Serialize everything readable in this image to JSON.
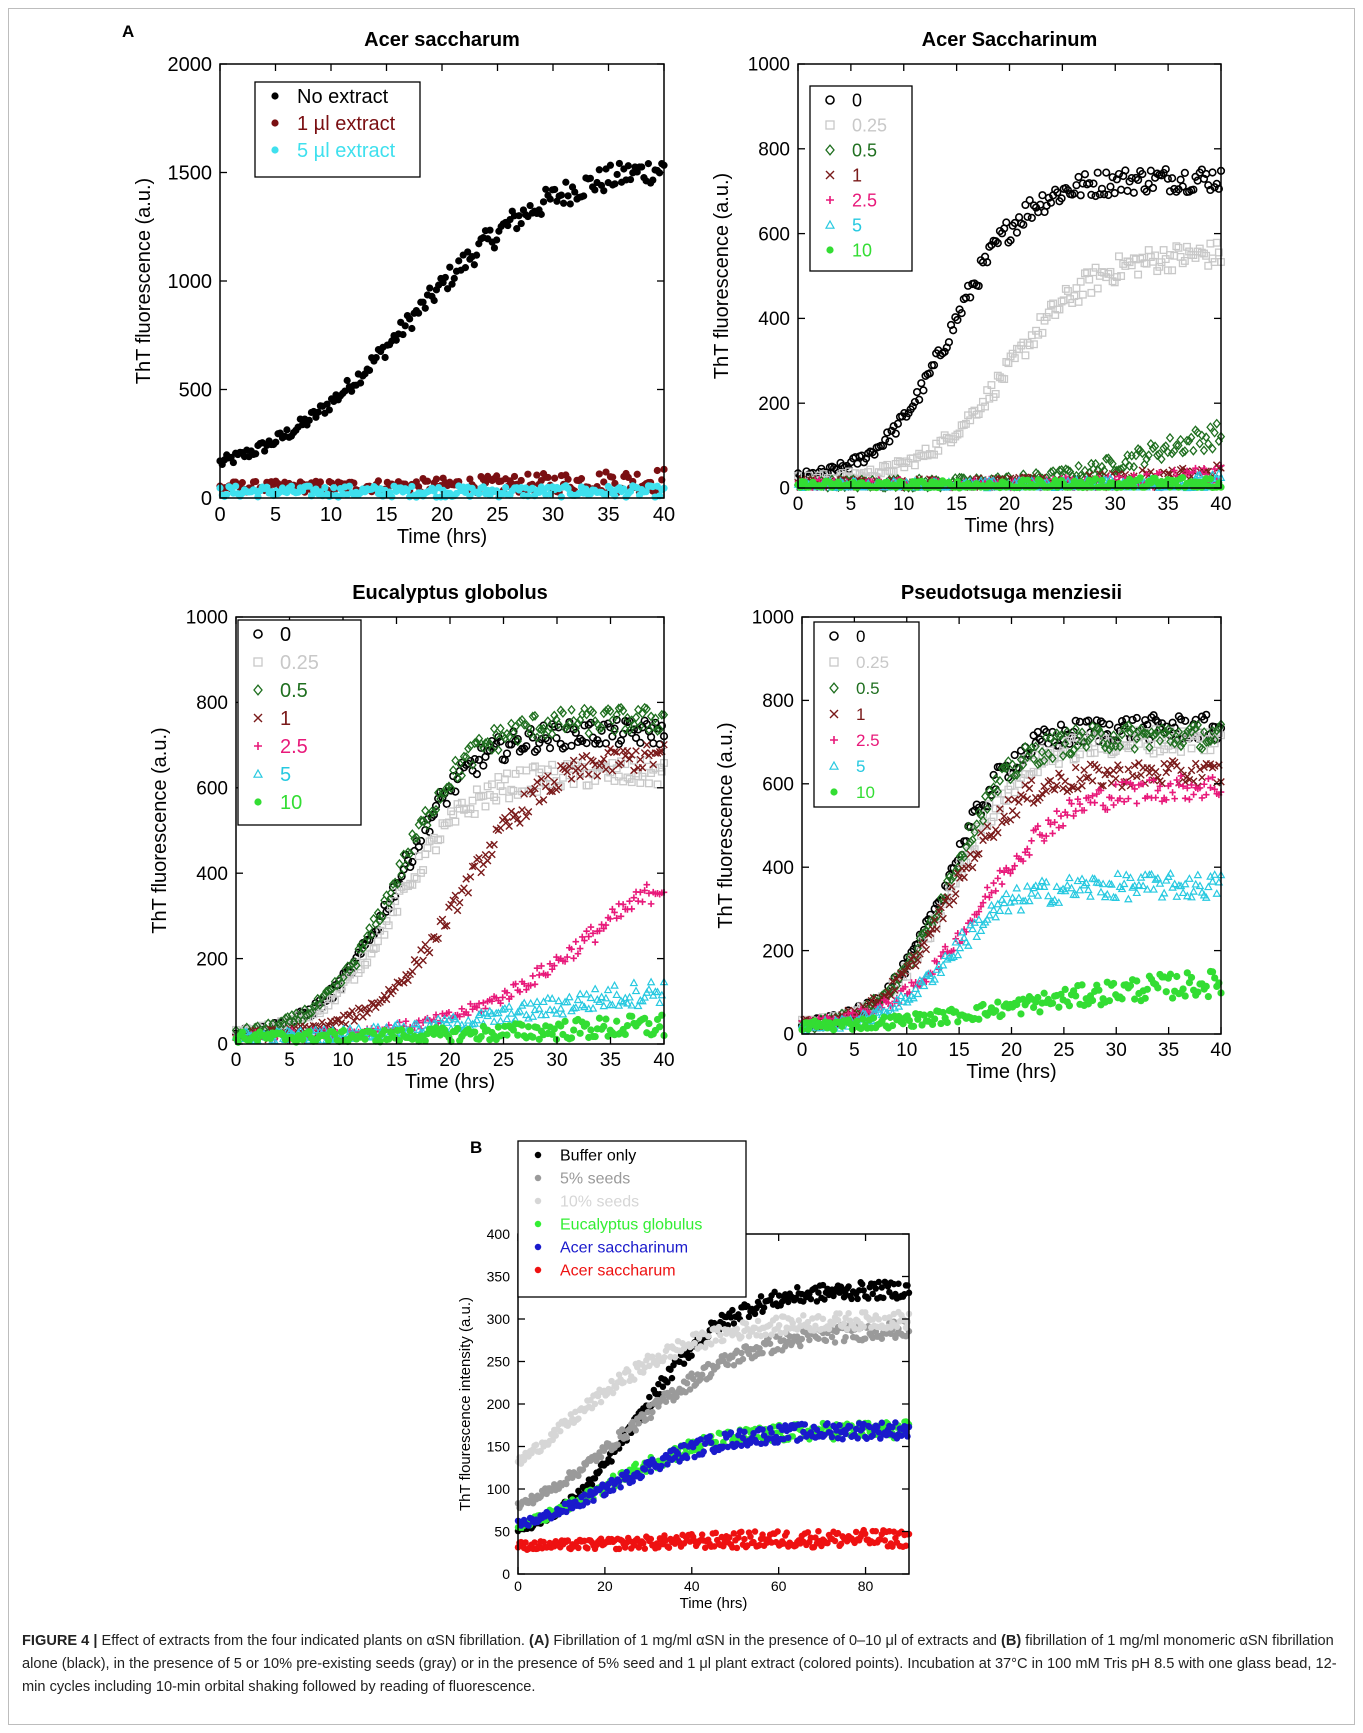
{
  "panel_letters": {
    "a": "A",
    "b": "B"
  },
  "caption": {
    "lead": "FIGURE 4 |",
    "t1": " Effect of extracts from the four indicated plants on αSN fibrillation. ",
    "a": "(A)",
    "t2": " Fibrillation of 1 mg/ml αSN in the presence of 0–10 μl of extracts and ",
    "b": "(B)",
    "t3": " fibrillation of 1 mg/ml monomeric αSN fibrillation alone (black), in the presence of 5 or 10% pre-existing seeds (gray) or in the presence of 5% seed and 1 μl plant extract (colored points). Incubation at 37°C in 100 mM Tris pH 8.5 with one glass bead, 12-min cycles including 10-min orbital shaking followed by reading of fluorescence."
  },
  "chart_data": [
    {
      "type": "scatter",
      "title": "Acer saccharum",
      "xlabel": "Time (hrs)",
      "ylabel": "ThT fluorescence (a.u.)",
      "xlim": [
        0,
        40
      ],
      "ylim": [
        0,
        2000
      ],
      "xticks": [
        0,
        5,
        10,
        15,
        20,
        25,
        30,
        35,
        40
      ],
      "yticks": [
        0,
        500,
        1000,
        1500,
        2000
      ],
      "legend_position": "top-left",
      "series": [
        {
          "name": "No extract",
          "color": "#000000",
          "marker": "dot",
          "model": [
            60,
            1500,
            17,
            6.5
          ]
        },
        {
          "name": "1 µl extract",
          "color": "#7a0f12",
          "marker": "dot",
          "model": [
            50,
            40,
            30,
            8
          ]
        },
        {
          "name": "5 µl extract",
          "color": "#3fe0ee",
          "marker": "dot",
          "model": [
            30,
            0,
            30,
            8
          ]
        }
      ]
    },
    {
      "type": "scatter",
      "title": "Acer Saccharinum",
      "xlabel": "Time (hrs)",
      "ylabel": "ThT fluorescence (a.u.)",
      "xlim": [
        0,
        40
      ],
      "ylim": [
        0,
        1000
      ],
      "xticks": [
        0,
        5,
        10,
        15,
        20,
        25,
        30,
        35,
        40
      ],
      "yticks": [
        0,
        200,
        400,
        600,
        800,
        1000
      ],
      "legend_position": "top-left",
      "series": [
        {
          "name": "0",
          "color": "#000000",
          "marker": "circle",
          "model": [
            15,
            715,
            14.5,
            3.4
          ]
        },
        {
          "name": "0.25",
          "color": "#c8c8c8",
          "marker": "square",
          "model": [
            15,
            540,
            20,
            4
          ]
        },
        {
          "name": "0.5",
          "color": "#1f6f1f",
          "marker": "diamond",
          "model": [
            10,
            140,
            33,
            4.5
          ]
        },
        {
          "name": "1",
          "color": "#7a1a1a",
          "marker": "x",
          "model": [
            10,
            30,
            35,
            5
          ]
        },
        {
          "name": "2.5",
          "color": "#e8197a",
          "marker": "plus",
          "model": [
            8,
            25,
            36,
            5
          ]
        },
        {
          "name": "5",
          "color": "#27c9e0",
          "marker": "triangle",
          "model": [
            5,
            10,
            38,
            6
          ]
        },
        {
          "name": "10",
          "color": "#33dd33",
          "marker": "dot",
          "model": [
            5,
            8,
            38,
            6
          ]
        }
      ]
    },
    {
      "type": "scatter",
      "title": "Eucalyptus globolus",
      "xlabel": "Time (hrs)",
      "ylabel": "ThT fluorescence (a.u.)",
      "xlim": [
        0,
        40
      ],
      "ylim": [
        0,
        1000
      ],
      "xticks": [
        0,
        5,
        10,
        15,
        20,
        25,
        30,
        35,
        40
      ],
      "yticks": [
        0,
        200,
        400,
        600,
        800,
        1000
      ],
      "legend_position": "top-left",
      "series": [
        {
          "name": "0",
          "color": "#000000",
          "marker": "circle",
          "model": [
            15,
            715,
            15,
            3.4
          ]
        },
        {
          "name": "0.25",
          "color": "#c8c8c8",
          "marker": "square",
          "model": [
            15,
            620,
            15,
            3.5
          ]
        },
        {
          "name": "0.5",
          "color": "#1f6f1f",
          "marker": "diamond",
          "model": [
            15,
            745,
            15,
            3.4
          ]
        },
        {
          "name": "1",
          "color": "#7a1a1a",
          "marker": "x",
          "model": [
            15,
            665,
            21,
            4
          ]
        },
        {
          "name": "2.5",
          "color": "#e8197a",
          "marker": "plus",
          "model": [
            15,
            470,
            33,
            6
          ]
        },
        {
          "name": "5",
          "color": "#27c9e0",
          "marker": "triangle",
          "model": [
            15,
            130,
            28,
            7
          ]
        },
        {
          "name": "10",
          "color": "#33dd33",
          "marker": "dot",
          "model": [
            15,
            35,
            30,
            8
          ]
        }
      ]
    },
    {
      "type": "scatter",
      "title": "Pseudotsuga menziesii",
      "xlabel": "Time (hrs)",
      "ylabel": "ThT fluorescence (a.u.)",
      "xlim": [
        0,
        40
      ],
      "ylim": [
        0,
        1000
      ],
      "xticks": [
        0,
        5,
        10,
        15,
        20,
        25,
        30,
        35,
        40
      ],
      "yticks": [
        0,
        200,
        400,
        600,
        800,
        1000
      ],
      "legend_position": "top-left",
      "series": [
        {
          "name": "0",
          "color": "#000000",
          "marker": "circle",
          "model": [
            15,
            720,
            14,
            3
          ]
        },
        {
          "name": "0.25",
          "color": "#c8c8c8",
          "marker": "square",
          "model": [
            15,
            690,
            14.5,
            3.2
          ]
        },
        {
          "name": "0.5",
          "color": "#1f6f1f",
          "marker": "diamond",
          "model": [
            15,
            700,
            14,
            3
          ]
        },
        {
          "name": "1",
          "color": "#7a1a1a",
          "marker": "x",
          "model": [
            15,
            610,
            14,
            3.2
          ]
        },
        {
          "name": "2.5",
          "color": "#e8197a",
          "marker": "plus",
          "model": [
            15,
            580,
            17,
            4
          ]
        },
        {
          "name": "5",
          "color": "#27c9e0",
          "marker": "triangle",
          "model": [
            15,
            340,
            14,
            3
          ]
        },
        {
          "name": "10",
          "color": "#33dd33",
          "marker": "dot",
          "model": [
            15,
            115,
            22,
            7
          ]
        }
      ]
    },
    {
      "type": "scatter",
      "title": "",
      "xlabel": "Time (hrs)",
      "ylabel": "ThT flourescence intensity (a.u.)",
      "xlim": [
        0,
        90
      ],
      "ylim": [
        0,
        400
      ],
      "xticks": [
        0,
        20,
        40,
        60,
        80
      ],
      "yticks": [
        0,
        50,
        100,
        150,
        200,
        250,
        300,
        350,
        400
      ],
      "legend_position": "top-left",
      "series": [
        {
          "name": "Buffer only",
          "color": "#000000",
          "marker": "dot",
          "model": [
            35,
            300,
            28,
            10
          ]
        },
        {
          "name": "5% seeds",
          "color": "#9a9a9a",
          "marker": "dot",
          "model": [
            45,
            245,
            25,
            14
          ]
        },
        {
          "name": "10% seeds",
          "color": "#d6d6d6",
          "marker": "dot",
          "model": [
            60,
            240,
            12,
            14
          ]
        },
        {
          "name": "Eucalyptus globulus",
          "color": "#33ee33",
          "marker": "dot",
          "model": [
            35,
            135,
            20,
            12
          ]
        },
        {
          "name": "Acer saccharinum",
          "color": "#1a1acc",
          "marker": "dot",
          "model": [
            40,
            130,
            22,
            12
          ]
        },
        {
          "name": "Acer saccharum",
          "color": "#ee1111",
          "marker": "dot",
          "model": [
            32,
            10,
            30,
            15
          ]
        }
      ]
    }
  ]
}
